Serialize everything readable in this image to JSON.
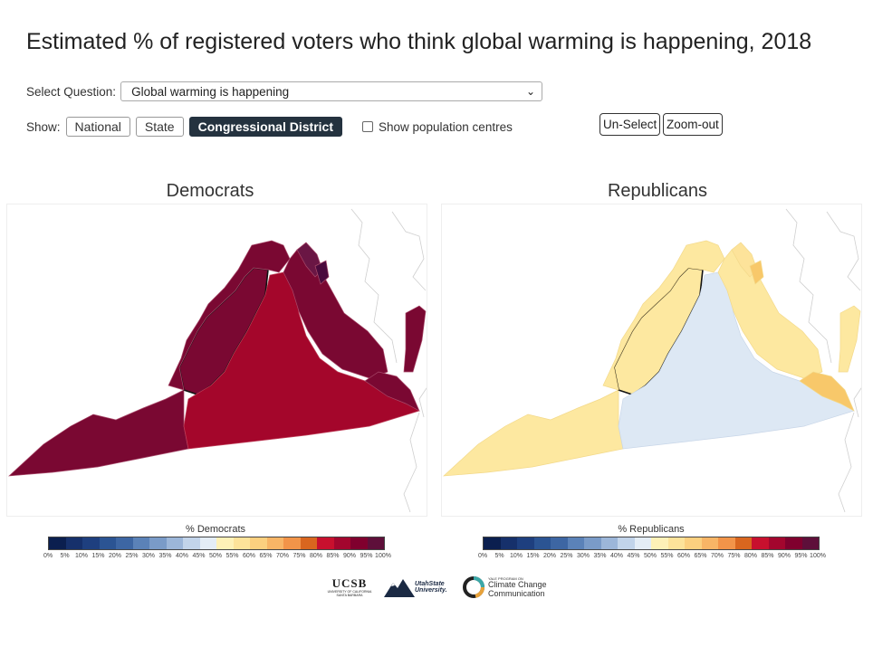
{
  "title": "Estimated % of registered voters who think global warming is happening, 2018",
  "question": {
    "label": "Select Question:",
    "selected": "Global warming is happening"
  },
  "show": {
    "label": "Show:",
    "options": [
      "National",
      "State",
      "Congressional District"
    ],
    "active": "Congressional District",
    "checkbox_label": "Show population centres"
  },
  "controls": {
    "unselect": "Un-Select",
    "zoomout": "Zoom-out"
  },
  "panels": [
    {
      "title": "Democrats",
      "legend_title": "% Democrats"
    },
    {
      "title": "Republicans",
      "legend_title": "% Republicans"
    }
  ],
  "legend": {
    "ticks": [
      "0%",
      "5%",
      "10%",
      "15%",
      "20%",
      "25%",
      "30%",
      "35%",
      "40%",
      "45%",
      "50%",
      "55%",
      "60%",
      "65%",
      "70%",
      "75%",
      "80%",
      "85%",
      "90%",
      "95%",
      "100%"
    ],
    "colors": [
      "#0b1f4f",
      "#16306b",
      "#1e3f7f",
      "#2b5493",
      "#3d66a3",
      "#5b82b8",
      "#7a9bc8",
      "#9cb6d9",
      "#c2d4ea",
      "#e4edf6",
      "#fef1b7",
      "#fde39a",
      "#fcd07f",
      "#f8b566",
      "#f29449",
      "#d9661f",
      "#c8102e",
      "#a3062e",
      "#80002e",
      "#5e0f3a"
    ]
  },
  "map_colors": {
    "dem_dark": "#7a0832",
    "dem_mid": "#a4062b",
    "dem_plum": "#6a1644",
    "rep_yellow": "#fde8a0",
    "rep_blue": "#dde8f4",
    "rep_orange": "#f8c86a"
  },
  "logos": {
    "ucsb": "UCSB",
    "ucsb_sub": "UNIVERSITY OF CALIFORNIA SANTA BARBARA",
    "usu": "UtahState University.",
    "yale_small": "YALE PROGRAM ON",
    "yale": "Climate Change Communication"
  }
}
